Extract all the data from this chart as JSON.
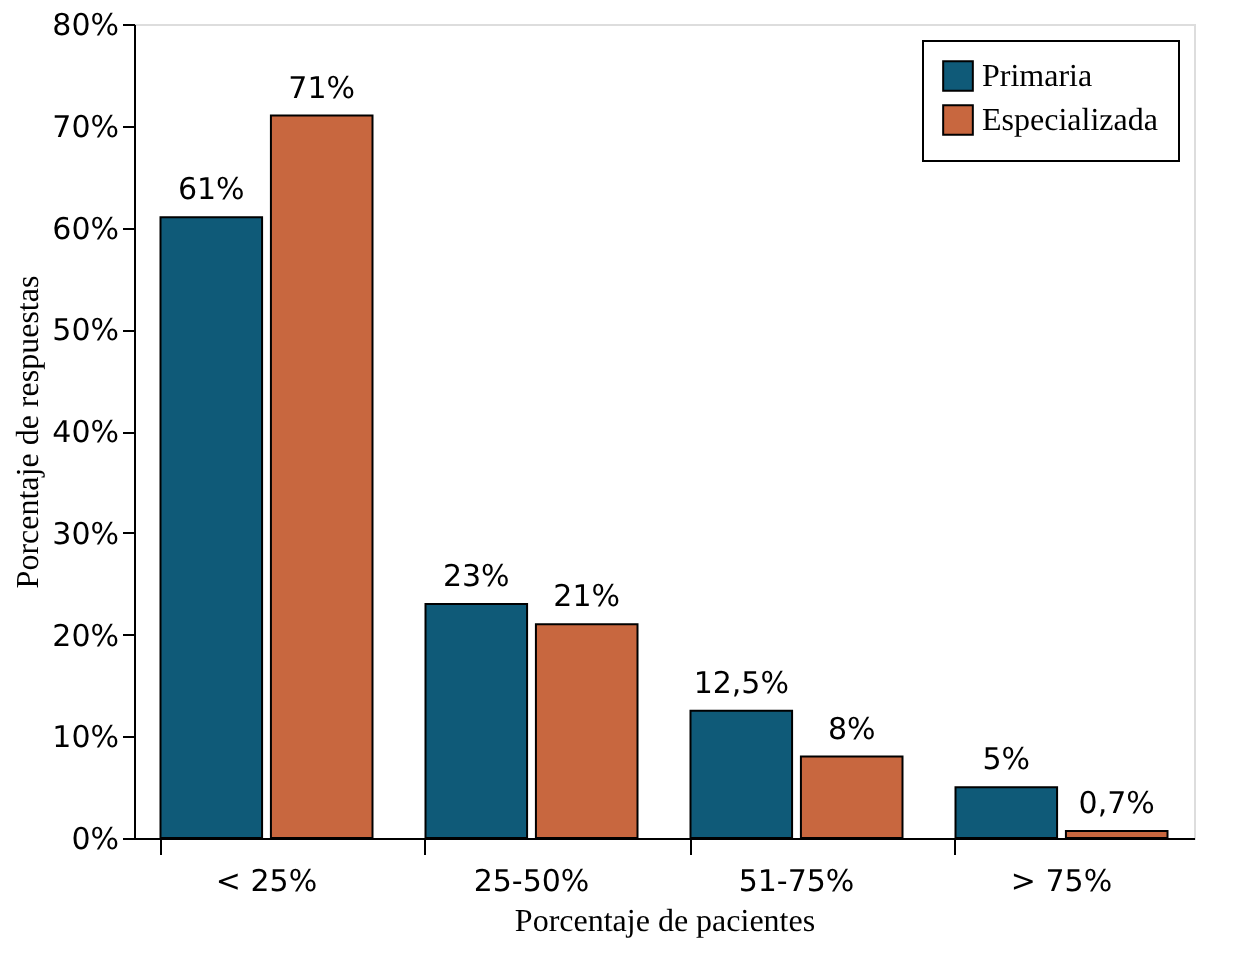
{
  "chart_data": {
    "type": "bar",
    "xlabel": "Porcentaje de pacientes",
    "ylabel": "Porcentaje de respuestas",
    "categories": [
      "< 25%",
      "25-50%",
      "51-75%",
      "> 75%"
    ],
    "series": [
      {
        "name": "Primaria",
        "color": "#0f5a78",
        "values": [
          61,
          23,
          12.5,
          5
        ],
        "value_labels": [
          "61%",
          "23%",
          "12,5%",
          "5%"
        ]
      },
      {
        "name": "Especializada",
        "color": "#c8673f",
        "values": [
          71,
          21,
          8,
          0.7
        ],
        "value_labels": [
          "71%",
          "21%",
          "8%",
          "0,7%"
        ]
      }
    ],
    "ylim": [
      0,
      80
    ],
    "yticks": [
      {
        "value": 0,
        "label": "0%"
      },
      {
        "value": 10,
        "label": "10%"
      },
      {
        "value": 20,
        "label": "20%"
      },
      {
        "value": 30,
        "label": "30%"
      },
      {
        "value": 40,
        "label": "40%"
      },
      {
        "value": 50,
        "label": "50%"
      },
      {
        "value": 60,
        "label": "60%"
      },
      {
        "value": 70,
        "label": "70%"
      },
      {
        "value": 80,
        "label": "80%"
      }
    ],
    "grid": false,
    "legend": "top right"
  }
}
